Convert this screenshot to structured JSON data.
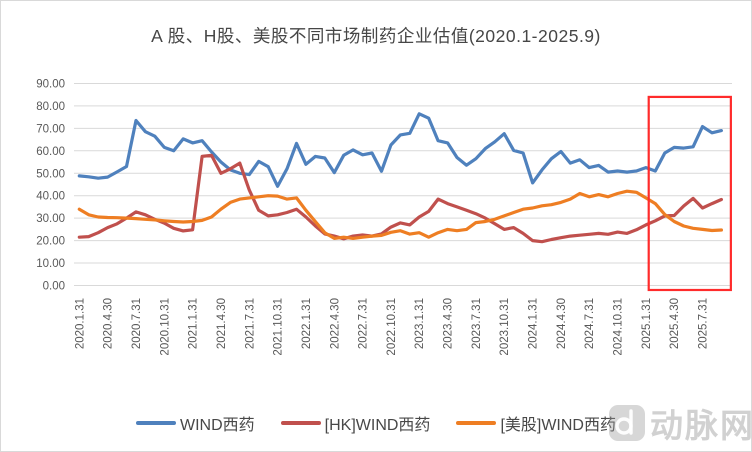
{
  "chart_data": {
    "type": "line",
    "title": "A 股、H股、美股不同市场制药企业估值(2020.1-2025.9)",
    "x_unit": "month",
    "x_start": "2020.1",
    "x_end": "2025.9",
    "n_points": 69,
    "x_tick_every_months": 3,
    "x_tick_labels": [
      "2020.1.31",
      "2020.4.30",
      "2020.7.31",
      "2020.10.31",
      "2021.1.31",
      "2021.4.30",
      "2021.7.31",
      "2021.10.31",
      "2022.1.31",
      "2022.4.30",
      "2022.7.31",
      "2022.10.31",
      "2023.1.31",
      "2023.4.30",
      "2023.7.31",
      "2023.10.31",
      "2024.1.31",
      "2024.4.30",
      "2024.7.31",
      "2024.10.31",
      "2025.1.31",
      "2025.4.30",
      "2025.7.31"
    ],
    "ylim": [
      0,
      90
    ],
    "y_tick_step": 10,
    "y_tick_labels": [
      "0.00",
      "10.00",
      "20.00",
      "30.00",
      "40.00",
      "50.00",
      "60.00",
      "70.00",
      "80.00",
      "90.00"
    ],
    "grid": "horizontal",
    "gridline_color": "#d9d9d9",
    "legend_position": "bottom",
    "highlight_box": {
      "color": "#ff2b2b",
      "month_index_from": 60.3,
      "month_index_to": 69.0,
      "value_from": -2.0,
      "value_to": 84.0
    },
    "series": [
      {
        "name": "WIND西药",
        "market": "A股",
        "color": "#4F81BD",
        "values": [
          48.8,
          48.4,
          47.8,
          48.3,
          50.6,
          53.0,
          73.5,
          68.5,
          66.5,
          61.5,
          60.0,
          65.3,
          63.5,
          64.5,
          59.5,
          55.0,
          51.5,
          50.0,
          49.4,
          55.3,
          52.9,
          44.2,
          52.0,
          63.3,
          54.0,
          57.5,
          56.8,
          50.3,
          58.0,
          60.4,
          58.2,
          59.0,
          50.9,
          62.6,
          67.1,
          67.8,
          76.5,
          74.5,
          64.5,
          63.5,
          57.0,
          53.6,
          56.5,
          61.0,
          64.0,
          67.6,
          60.2,
          59.0,
          45.7,
          51.5,
          56.5,
          59.7,
          54.5,
          56.0,
          52.5,
          53.5,
          50.5,
          51.0,
          50.5,
          51.0,
          52.5,
          51.0,
          59.0,
          61.5,
          61.2,
          61.8,
          70.8,
          68.0,
          69.0
        ]
      },
      {
        "name": "[HK]WIND西药",
        "market": "H股",
        "color": "#C0504D",
        "values": [
          21.5,
          21.8,
          23.5,
          25.8,
          27.5,
          30.0,
          32.8,
          31.5,
          29.5,
          27.8,
          25.5,
          24.3,
          24.8,
          57.5,
          58.0,
          50.0,
          52.0,
          54.5,
          42.5,
          33.5,
          31.0,
          31.5,
          32.5,
          34.0,
          30.5,
          26.5,
          23.0,
          22.0,
          20.8,
          22.0,
          22.5,
          22.0,
          23.0,
          26.0,
          27.9,
          27.0,
          30.5,
          33.0,
          38.5,
          36.5,
          35.0,
          33.5,
          32.0,
          30.0,
          27.5,
          25.0,
          25.8,
          23.2,
          20.0,
          19.5,
          20.5,
          21.3,
          22.0,
          22.4,
          22.8,
          23.2,
          22.8,
          23.8,
          23.2,
          24.8,
          27.0,
          28.8,
          31.0,
          31.2,
          35.4,
          38.8,
          34.5,
          36.5,
          38.3
        ]
      },
      {
        "name": "[美股]WIND西药",
        "market": "美股",
        "color": "#EE7E23",
        "values": [
          34.0,
          31.5,
          30.5,
          30.3,
          30.2,
          30.0,
          29.8,
          29.5,
          29.2,
          28.8,
          28.5,
          28.3,
          28.5,
          29.0,
          30.5,
          34.0,
          37.0,
          38.5,
          39.0,
          39.5,
          40.0,
          39.8,
          38.5,
          39.0,
          33.5,
          28.4,
          23.5,
          21.0,
          21.5,
          21.0,
          21.5,
          22.0,
          22.3,
          23.7,
          24.4,
          22.9,
          23.5,
          21.5,
          23.5,
          25.0,
          24.4,
          25.0,
          28.0,
          28.5,
          29.5,
          31.0,
          32.5,
          34.0,
          34.5,
          35.5,
          36.0,
          37.0,
          38.5,
          41.0,
          39.5,
          40.5,
          39.5,
          41.0,
          42.0,
          41.5,
          39.0,
          36.5,
          31.6,
          28.5,
          26.5,
          25.5,
          25.0,
          24.5,
          24.7
        ]
      }
    ]
  },
  "watermark": {
    "text": "动脉网",
    "icon": "vcbeat-logo-icon"
  }
}
